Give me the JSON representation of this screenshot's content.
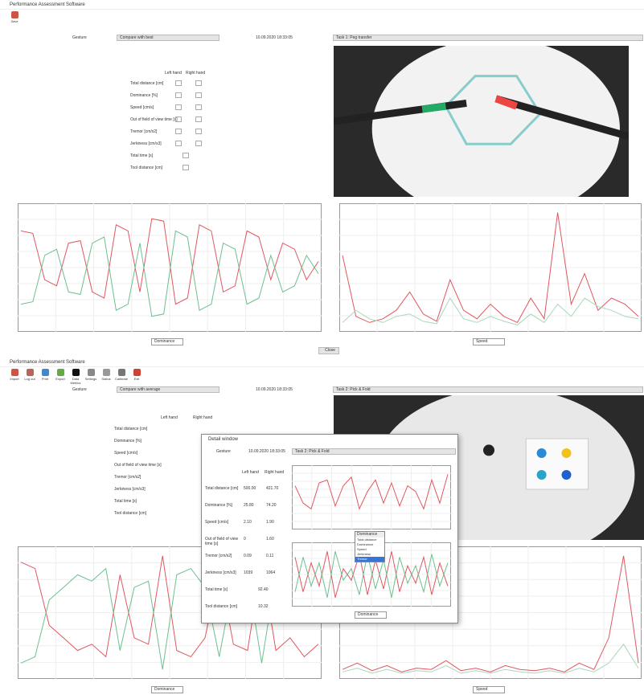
{
  "top": {
    "title": "Performance Assessment Software",
    "toolbar": [
      "Save"
    ],
    "label": "Gesture",
    "mode": "Compare with best",
    "date": "10.09.2020 18:33:05",
    "task": "Task 1: Peg transfer",
    "columns": [
      "Left hand",
      "Right hand"
    ],
    "metrics": [
      "Total distance [cm]",
      "Dominance [%]",
      "Speed [cm/s]",
      "Out of field of view time [s]",
      "Tremor [cm/s2]",
      "Jerkiness [cm/s3]",
      "Total time [s]",
      "Tool distance [cm]"
    ],
    "charts": [
      {
        "ylim": [
          0,
          100
        ],
        "series": [
          {
            "color": "#e0575f",
            "values": [
              80,
              78,
              40,
              35,
              70,
              72,
              30,
              25,
              85,
              80,
              30,
              90,
              88,
              20,
              25,
              85,
              80,
              30,
              35,
              80,
              75,
              40,
              70,
              65,
              40,
              55
            ]
          },
          {
            "color": "#6cc08f",
            "values": [
              20,
              22,
              60,
              65,
              30,
              28,
              70,
              75,
              15,
              20,
              70,
              10,
              12,
              80,
              75,
              15,
              20,
              70,
              65,
              20,
              25,
              60,
              30,
              35,
              60,
              45
            ]
          }
        ]
      },
      {
        "ylim": [
          0,
          100
        ],
        "series": [
          {
            "color": "#e0575f",
            "values": [
              60,
              10,
              5,
              8,
              15,
              30,
              12,
              6,
              40,
              15,
              8,
              20,
              10,
              5,
              25,
              8,
              95,
              20,
              45,
              15,
              25,
              20,
              10
            ]
          },
          {
            "color": "#a8d8bb",
            "values": [
              5,
              15,
              8,
              5,
              10,
              12,
              6,
              4,
              25,
              8,
              5,
              10,
              6,
              3,
              12,
              5,
              20,
              10,
              25,
              18,
              15,
              10,
              8
            ]
          }
        ]
      }
    ],
    "selectors": [
      "Dominance",
      "Speed"
    ],
    "button": "Close"
  },
  "bottom": {
    "title": "Performance Assessment Software",
    "toolbar": [
      "Import",
      "Log out",
      "Print",
      "Export",
      "Data Metrics",
      "Settings",
      "Status",
      "Calibrate",
      "Exit"
    ],
    "label": "Gesture",
    "mode": "Compare with average",
    "date": "10.09.2020 18:33:05",
    "task": "Task 2: Pick & Fold",
    "columns": [
      "Left hand",
      "Right hand"
    ],
    "metrics": [
      "Total distance [cm]",
      "Dominance [%]",
      "Speed [cm/s]",
      "Out of field of view time [s]",
      "Tremor [cm/s2]",
      "Jerkiness [cm/s3]",
      "Total time [s]",
      "Tool distance [cm]"
    ],
    "charts": [
      {
        "ylim": [
          0,
          100
        ],
        "series": [
          {
            "color": "#e0575f",
            "values": [
              90,
              85,
              40,
              30,
              20,
              25,
              15,
              80,
              30,
              25,
              95,
              20,
              15,
              30,
              85,
              25,
              20,
              90,
              20,
              30,
              15,
              25
            ]
          },
          {
            "color": "#6cc08f",
            "values": [
              10,
              15,
              60,
              70,
              80,
              75,
              85,
              20,
              70,
              75,
              5,
              80,
              85,
              70,
              15,
              75,
              80,
              10,
              80,
              70,
              85,
              75
            ]
          }
        ]
      },
      {
        "ylim": [
          0,
          100
        ],
        "series": [
          {
            "color": "#e0575f",
            "values": [
              5,
              10,
              4,
              8,
              3,
              6,
              5,
              12,
              4,
              6,
              3,
              8,
              5,
              4,
              6,
              3,
              10,
              5,
              30,
              95,
              10
            ]
          },
          {
            "color": "#a8d8bb",
            "values": [
              3,
              6,
              2,
              5,
              2,
              4,
              3,
              8,
              2,
              4,
              2,
              5,
              3,
              2,
              4,
              2,
              6,
              3,
              10,
              25,
              6
            ]
          }
        ]
      }
    ],
    "selectors": [
      "Dominance",
      "Speed"
    ]
  },
  "popup": {
    "title": "Detail window",
    "label": "Gesture",
    "date": "10.09.2020 18:33:05",
    "task": "Task 2: Pick & Fold",
    "columns": [
      "Left hand",
      "Right hand"
    ],
    "rows": [
      [
        "Total distance [cm]",
        "500.00",
        "421.70"
      ],
      [
        "Dominance [%]",
        "25.80",
        "74.20"
      ],
      [
        "Speed [cm/s]",
        "2.10",
        "1.90"
      ],
      [
        "Out of field of view time [s]",
        "0",
        "1.60"
      ],
      [
        "Tremor [cm/s2]",
        "0.09",
        "0.11"
      ],
      [
        "Jerkiness [cm/s3]",
        "1039",
        "1064"
      ],
      [
        "Total time [s]",
        "92.40"
      ],
      [
        "Tool distance [cm]",
        "10.32"
      ]
    ],
    "menu": [
      "Total distance",
      "Dominance",
      "Speed",
      "Jerkiness",
      "Tremor"
    ],
    "menu_selected": "Tremor",
    "selector": "Dominance",
    "charts": [
      {
        "ylim": [
          0,
          100
        ],
        "series": [
          {
            "color": "#e0575f",
            "values": [
              70,
              40,
              30,
              75,
              80,
              35,
              70,
              85,
              30,
              60,
              80,
              40,
              75,
              35,
              70,
              60,
              30,
              80,
              40,
              90
            ]
          }
        ]
      },
      {
        "ylim": [
          0,
          100
        ],
        "series": [
          {
            "color": "#e0575f",
            "values": [
              80,
              20,
              70,
              30,
              90,
              10,
              60,
              40,
              85,
              15,
              75,
              25,
              90,
              20,
              65,
              35,
              80,
              15,
              70,
              30
            ]
          },
          {
            "color": "#6cc08f",
            "values": [
              20,
              80,
              30,
              70,
              10,
              90,
              40,
              60,
              15,
              85,
              25,
              75,
              10,
              80,
              35,
              65,
              20,
              85,
              30,
              70
            ]
          }
        ]
      }
    ]
  }
}
